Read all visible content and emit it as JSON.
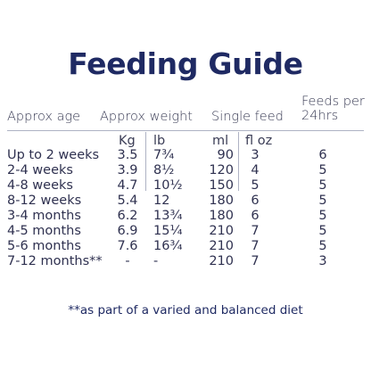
{
  "title": "Feeding Guide",
  "headers": {
    "age": "Approx age",
    "weight": "Approx weight",
    "single_feed": "Single feed",
    "feeds_per_line1": "Feeds per",
    "feeds_per_line2": "24hrs"
  },
  "units": {
    "kg": "Kg",
    "lb": "lb",
    "ml": "ml",
    "floz": "fl oz"
  },
  "rows": [
    {
      "age": "Up to 2 weeks",
      "kg": "3.5",
      "lb": "7¾",
      "ml": "90",
      "floz": "3",
      "feeds": "6"
    },
    {
      "age": "2-4 weeks",
      "kg": "3.9",
      "lb": "8½",
      "ml": "120",
      "floz": "4",
      "feeds": "5"
    },
    {
      "age": "4-8 weeks",
      "kg": "4.7",
      "lb": "10½",
      "ml": "150",
      "floz": "5",
      "feeds": "5"
    },
    {
      "age": "8-12 weeks",
      "kg": "5.4",
      "lb": "12",
      "ml": "180",
      "floz": "6",
      "feeds": "5"
    },
    {
      "age": "3-4 months",
      "kg": "6.2",
      "lb": "13¾",
      "ml": "180",
      "floz": "6",
      "feeds": "5"
    },
    {
      "age": "4-5 months",
      "kg": "6.9",
      "lb": "15¼",
      "ml": "210",
      "floz": "7",
      "feeds": "5"
    },
    {
      "age": "5-6 months",
      "kg": "7.6",
      "lb": "16¾",
      "ml": "210",
      "floz": "7",
      "feeds": "5"
    },
    {
      "age": "7-12 months**",
      "kg": "-",
      "lb": "-",
      "ml": "210",
      "floz": "7",
      "feeds": "3"
    }
  ],
  "footnote": "**as part of a varied and balanced diet"
}
